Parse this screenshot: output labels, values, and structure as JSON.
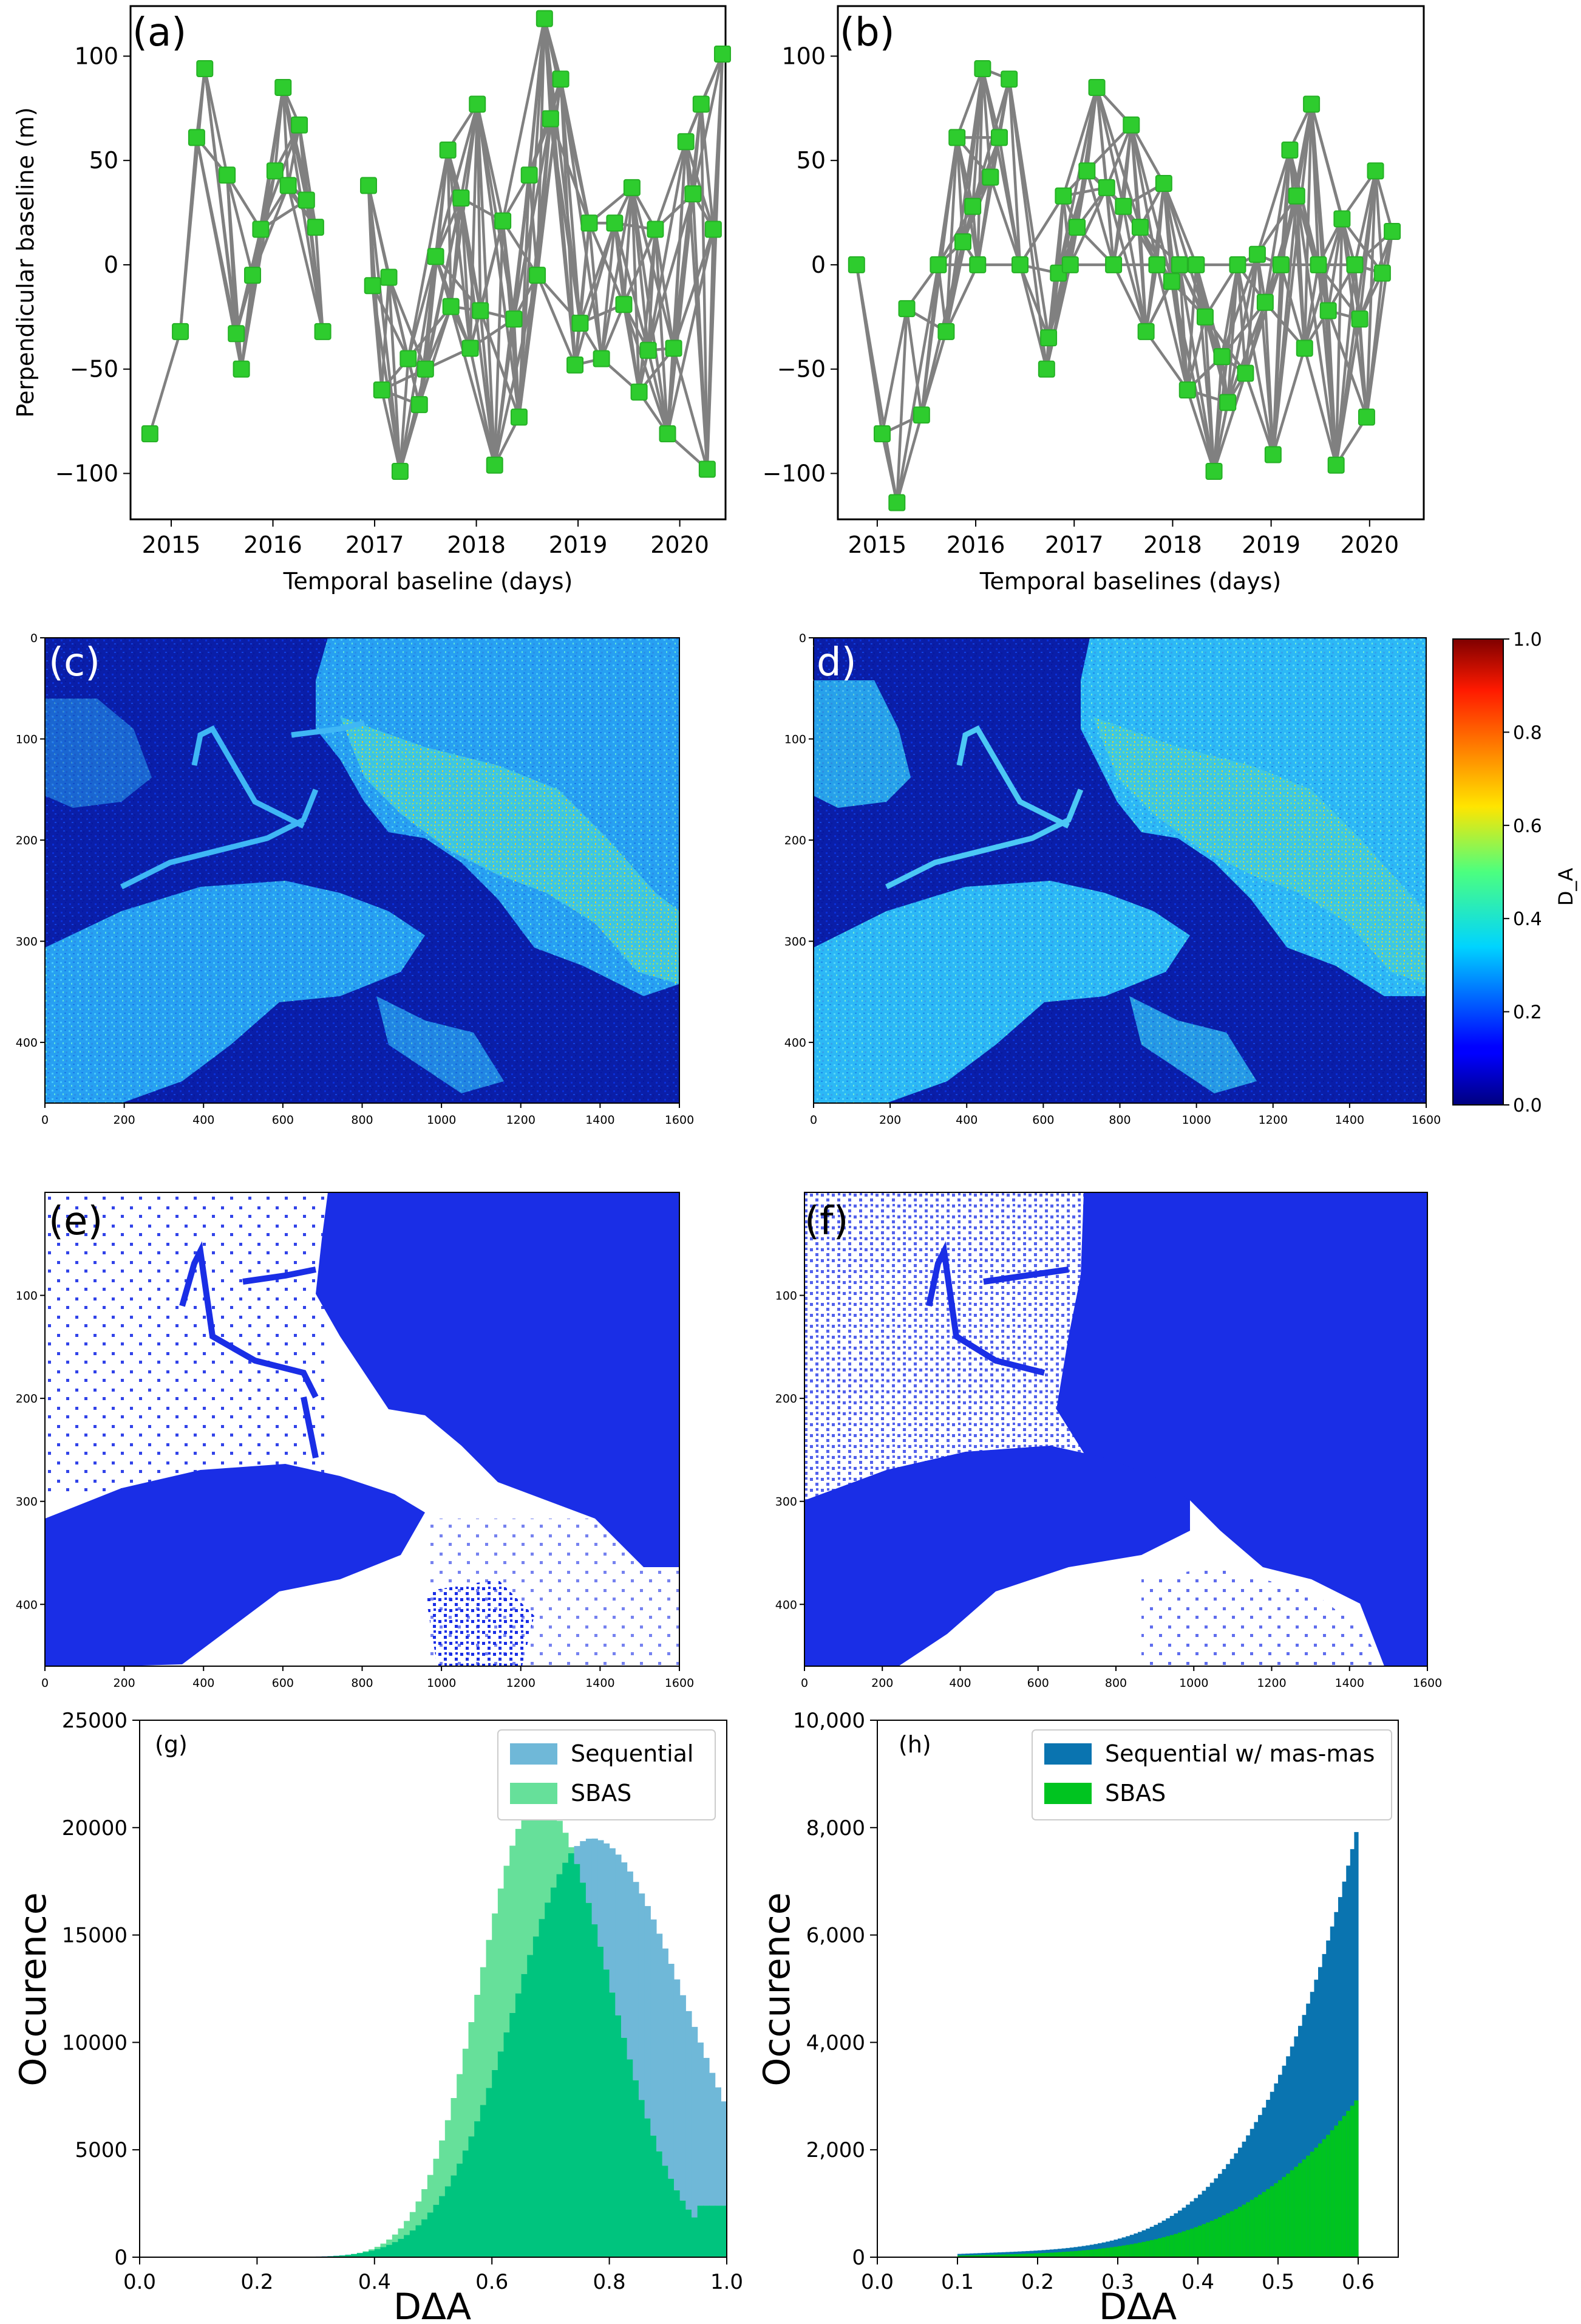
{
  "chart_data": [
    {
      "id": "a",
      "type": "scatter",
      "panel_label": "(a)",
      "title": "",
      "xlabel": "Temporal baseline (days)",
      "ylabel": "Perpendicular baseline (m)",
      "xlim": [
        2014.6,
        2020.45
      ],
      "ylim": [
        -122,
        124
      ],
      "x_ticks": [
        2015,
        2016,
        2017,
        2018,
        2019,
        2020
      ],
      "y_ticks": [
        100,
        50,
        0,
        -50,
        -100
      ],
      "y_tick_labels": [
        "100",
        "50",
        "0",
        "−50",
        "−100"
      ],
      "point_color": "#2ecc2e",
      "edge_color": "#808080",
      "points": [
        [
          2014.79,
          -81
        ],
        [
          2015.09,
          -32
        ],
        [
          2015.25,
          61
        ],
        [
          2015.33,
          94
        ],
        [
          2015.55,
          43
        ],
        [
          2015.64,
          -33
        ],
        [
          2015.69,
          -50
        ],
        [
          2015.8,
          -5
        ],
        [
          2015.88,
          17
        ],
        [
          2016.02,
          45
        ],
        [
          2016.1,
          85
        ],
        [
          2016.15,
          38
        ],
        [
          2016.26,
          67
        ],
        [
          2016.33,
          31
        ],
        [
          2016.42,
          18
        ],
        [
          2016.49,
          -32
        ],
        [
          2016.94,
          38
        ],
        [
          2016.98,
          -10
        ],
        [
          2017.07,
          -60
        ],
        [
          2017.14,
          -6
        ],
        [
          2017.25,
          -99
        ],
        [
          2017.33,
          -45
        ],
        [
          2017.44,
          -67
        ],
        [
          2017.5,
          -50
        ],
        [
          2017.6,
          4
        ],
        [
          2017.72,
          55
        ],
        [
          2017.75,
          -20
        ],
        [
          2017.85,
          32
        ],
        [
          2017.94,
          -40
        ],
        [
          2018.01,
          77
        ],
        [
          2018.04,
          -22
        ],
        [
          2018.18,
          -96
        ],
        [
          2018.26,
          21
        ],
        [
          2018.37,
          -26
        ],
        [
          2018.42,
          -73
        ],
        [
          2018.52,
          43
        ],
        [
          2018.6,
          -5
        ],
        [
          2018.67,
          118
        ],
        [
          2018.73,
          70
        ],
        [
          2018.83,
          89
        ],
        [
          2018.97,
          -48
        ],
        [
          2019.02,
          -28
        ],
        [
          2019.11,
          20
        ],
        [
          2019.23,
          -45
        ],
        [
          2019.36,
          20
        ],
        [
          2019.45,
          -19
        ],
        [
          2019.53,
          37
        ],
        [
          2019.6,
          -61
        ],
        [
          2019.69,
          -41
        ],
        [
          2019.76,
          17
        ],
        [
          2019.88,
          -81
        ],
        [
          2019.94,
          -40
        ],
        [
          2020.06,
          59
        ],
        [
          2020.13,
          34
        ],
        [
          2020.21,
          77
        ],
        [
          2020.27,
          -98
        ],
        [
          2020.33,
          17
        ],
        [
          2020.42,
          101
        ]
      ]
    },
    {
      "id": "b",
      "type": "scatter",
      "panel_label": "(b)",
      "title": "",
      "xlabel": "Temporal baselines (days)",
      "ylabel": "",
      "xlim": [
        2014.6,
        2020.55
      ],
      "ylim": [
        -122,
        124
      ],
      "x_ticks": [
        2015,
        2016,
        2017,
        2018,
        2019,
        2020
      ],
      "y_ticks": [
        100,
        50,
        0,
        -50,
        -100
      ],
      "y_tick_labels": [
        "100",
        "50",
        "0",
        "−50",
        "−100"
      ],
      "point_color": "#2ecc2e",
      "edge_color": "#808080",
      "points": [
        [
          2014.79,
          0
        ],
        [
          2015.05,
          -81
        ],
        [
          2015.2,
          -114
        ],
        [
          2015.3,
          -21
        ],
        [
          2015.45,
          -72
        ],
        [
          2015.62,
          0
        ],
        [
          2015.7,
          -32
        ],
        [
          2015.81,
          61
        ],
        [
          2015.87,
          11
        ],
        [
          2015.97,
          28
        ],
        [
          2016.02,
          0
        ],
        [
          2016.07,
          94
        ],
        [
          2016.15,
          42
        ],
        [
          2016.24,
          61
        ],
        [
          2016.34,
          89
        ],
        [
          2016.45,
          0
        ],
        [
          2016.72,
          -50
        ],
        [
          2016.74,
          -35
        ],
        [
          2016.84,
          -4
        ],
        [
          2016.89,
          33
        ],
        [
          2016.96,
          0
        ],
        [
          2017.03,
          18
        ],
        [
          2017.13,
          45
        ],
        [
          2017.23,
          85
        ],
        [
          2017.33,
          37
        ],
        [
          2017.4,
          0
        ],
        [
          2017.5,
          28
        ],
        [
          2017.58,
          67
        ],
        [
          2017.67,
          18
        ],
        [
          2017.73,
          -32
        ],
        [
          2017.84,
          0
        ],
        [
          2017.91,
          39
        ],
        [
          2017.99,
          -8
        ],
        [
          2018.07,
          0
        ],
        [
          2018.15,
          -60
        ],
        [
          2018.24,
          0
        ],
        [
          2018.33,
          -25
        ],
        [
          2018.42,
          -99
        ],
        [
          2018.5,
          -44
        ],
        [
          2018.56,
          -66
        ],
        [
          2018.66,
          0
        ],
        [
          2018.74,
          -52
        ],
        [
          2018.86,
          5
        ],
        [
          2018.94,
          -18
        ],
        [
          2019.02,
          -91
        ],
        [
          2019.1,
          0
        ],
        [
          2019.19,
          55
        ],
        [
          2019.26,
          33
        ],
        [
          2019.34,
          -40
        ],
        [
          2019.41,
          77
        ],
        [
          2019.48,
          0
        ],
        [
          2019.58,
          -22
        ],
        [
          2019.66,
          -96
        ],
        [
          2019.72,
          22
        ],
        [
          2019.85,
          0
        ],
        [
          2019.9,
          -26
        ],
        [
          2019.97,
          -73
        ],
        [
          2020.06,
          45
        ],
        [
          2020.13,
          -4
        ],
        [
          2020.23,
          16
        ]
      ]
    },
    {
      "id": "c",
      "type": "heatmap",
      "panel_label": "(c)",
      "xlim": [
        0,
        1600
      ],
      "ylim": [
        460,
        0
      ],
      "x_ticks": [
        0,
        200,
        400,
        600,
        800,
        1000,
        1200,
        1400,
        1600
      ],
      "y_ticks": [
        0,
        100,
        200,
        300,
        400
      ],
      "colorbar": {
        "label": "D_A",
        "range": [
          0,
          1
        ],
        "ticks": [
          "0.0",
          "0.2",
          "0.4",
          "0.6",
          "0.8",
          "1.0"
        ],
        "colormap": "jet"
      }
    },
    {
      "id": "d",
      "type": "heatmap",
      "panel_label": "(d)",
      "xlim": [
        0,
        1600
      ],
      "ylim": [
        460,
        0
      ],
      "x_ticks": [
        0,
        200,
        400,
        600,
        800,
        1000,
        1200,
        1400,
        1600
      ],
      "y_ticks": [
        0,
        100,
        200,
        300,
        400
      ]
    },
    {
      "id": "e",
      "type": "scatter",
      "panel_label": "(e)",
      "xlim": [
        0,
        1600
      ],
      "ylim": [
        460,
        0
      ],
      "x_ticks": [
        0,
        200,
        400,
        600,
        800,
        1000,
        1200,
        1400,
        1600
      ],
      "y_ticks": [
        100,
        200,
        300,
        400
      ],
      "point_color": "#1a2ee6"
    },
    {
      "id": "f",
      "type": "scatter",
      "panel_label": "(f)",
      "xlim": [
        0,
        1600
      ],
      "ylim": [
        460,
        0
      ],
      "x_ticks": [
        0,
        200,
        400,
        600,
        800,
        1000,
        1200,
        1400,
        1600
      ],
      "y_ticks": [
        100,
        200,
        300,
        400
      ],
      "point_color": "#1a2ee6"
    },
    {
      "id": "g",
      "type": "bar",
      "subtype": "histogram",
      "panel_label": "(g)",
      "xlabel": "DΔA",
      "ylabel": "Occurence",
      "xlim": [
        0,
        1
      ],
      "ylim": [
        0,
        25000
      ],
      "x_ticks": [
        0,
        0.2,
        0.4,
        0.6,
        0.8,
        1.0
      ],
      "x_tick_labels": [
        "0.0",
        "0.2",
        "0.4",
        "0.6",
        "0.8",
        "1.0"
      ],
      "y_ticks": [
        0,
        5000,
        10000,
        15000,
        20000,
        25000
      ],
      "y_tick_labels": [
        "0",
        "5000",
        "10000",
        "15000",
        "20000",
        "25000"
      ],
      "legend": [
        {
          "label": "Sequential",
          "color": "#6fb8d8"
        },
        {
          "label": "SBAS",
          "color": "#66e09a"
        }
      ],
      "overlap_color": "#00c47e",
      "series": [
        {
          "name": "Sequential",
          "color": "#6fb8d8",
          "peak_x": 0.77,
          "peak_y": 19500,
          "width_left": 0.13,
          "width_right": 0.16,
          "end_value": 6500
        },
        {
          "name": "SBAS",
          "color": "#66e09a",
          "peak_x": 0.68,
          "peak_y": 21200,
          "width_left": 0.1,
          "width_right": 0.12,
          "end_value": 2400
        }
      ],
      "bins": {
        "start": 0,
        "end": 1,
        "count": 100
      }
    },
    {
      "id": "h",
      "type": "bar",
      "subtype": "histogram",
      "panel_label": "(h)",
      "xlabel": "DΔA",
      "ylabel": "Occurence",
      "xlim": [
        0,
        0.65
      ],
      "ylim": [
        0,
        10000
      ],
      "x_ticks": [
        0,
        0.1,
        0.2,
        0.3,
        0.4,
        0.5,
        0.6
      ],
      "x_tick_labels": [
        "0.0",
        "0.1",
        "0.2",
        "0.3",
        "0.4",
        "0.5",
        "0.6"
      ],
      "y_ticks": [
        0,
        2000,
        4000,
        6000,
        8000,
        10000
      ],
      "y_tick_labels": [
        "0",
        "2,000",
        "4,000",
        "6,000",
        "8,000",
        "10,000"
      ],
      "legend": [
        {
          "label": "Sequential w/ mas-mas",
          "color": "#0a74b0"
        },
        {
          "label": "SBAS",
          "color": "#00c420"
        }
      ],
      "series": [
        {
          "name": "Sequential w/ mas-mas",
          "color": "#0a74b0",
          "peak_x": 0.6,
          "peak_y": 7800
        },
        {
          "name": "SBAS",
          "color": "#00c420",
          "peak_x": 0.6,
          "peak_y": 2800
        }
      ],
      "bins": {
        "start": 0.1,
        "end": 0.6,
        "count": 100
      }
    }
  ]
}
